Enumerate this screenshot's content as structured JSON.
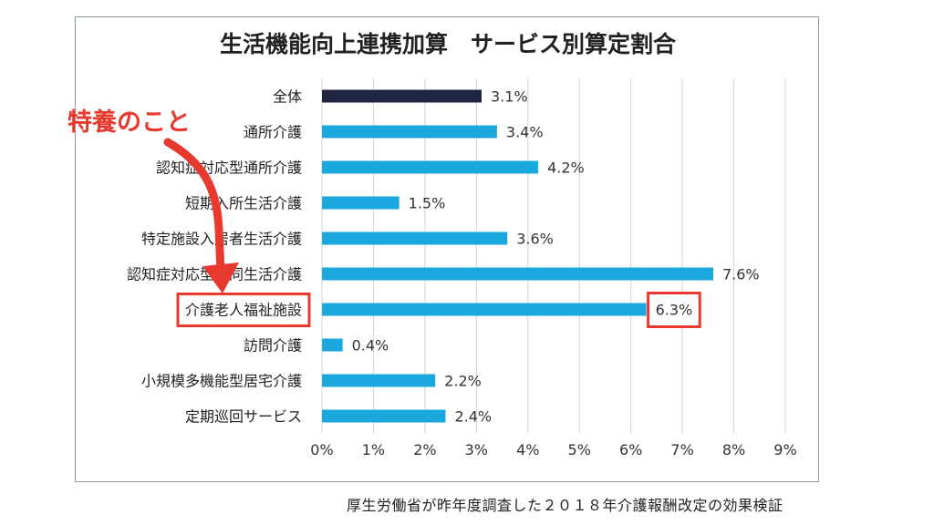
{
  "chart_data": {
    "type": "bar",
    "orientation": "horizontal",
    "title": "生活機能向上連携加算　サービス別算定割合",
    "categories": [
      "全体",
      "通所介護",
      "認知症対応型通所介護",
      "短期入所生活介護",
      "特定施設入居者生活介護",
      "認知症対応型共同生活介護",
      "介護老人福祉施設",
      "訪問介護",
      "小規模多機能型居宅介護",
      "定期巡回サービス"
    ],
    "values": [
      3.1,
      3.4,
      4.2,
      1.5,
      3.6,
      7.6,
      6.3,
      0.4,
      2.2,
      2.4
    ],
    "value_labels": [
      "3.1%",
      "3.4%",
      "4.2%",
      "1.5%",
      "3.6%",
      "7.6%",
      "6.3%",
      "0.4%",
      "2.2%",
      "2.4%"
    ],
    "x_ticks": [
      "0%",
      "1%",
      "2%",
      "3%",
      "4%",
      "5%",
      "6%",
      "7%",
      "8%",
      "9%"
    ],
    "xlim": [
      0,
      9
    ],
    "grid": "vertical",
    "colors": {
      "first_bar": "#1f2440",
      "bars": "#1aa8de",
      "highlight": "#e8392f",
      "grid": "#d0d6da"
    },
    "highlighted_category": "介護老人福祉施設"
  },
  "annotation": {
    "callout": "特養のこと",
    "arrow_color": "#e8392f"
  },
  "source_note": "厚生労働省が昨年度調査した２０１８年介護報酬改定の効果検証"
}
